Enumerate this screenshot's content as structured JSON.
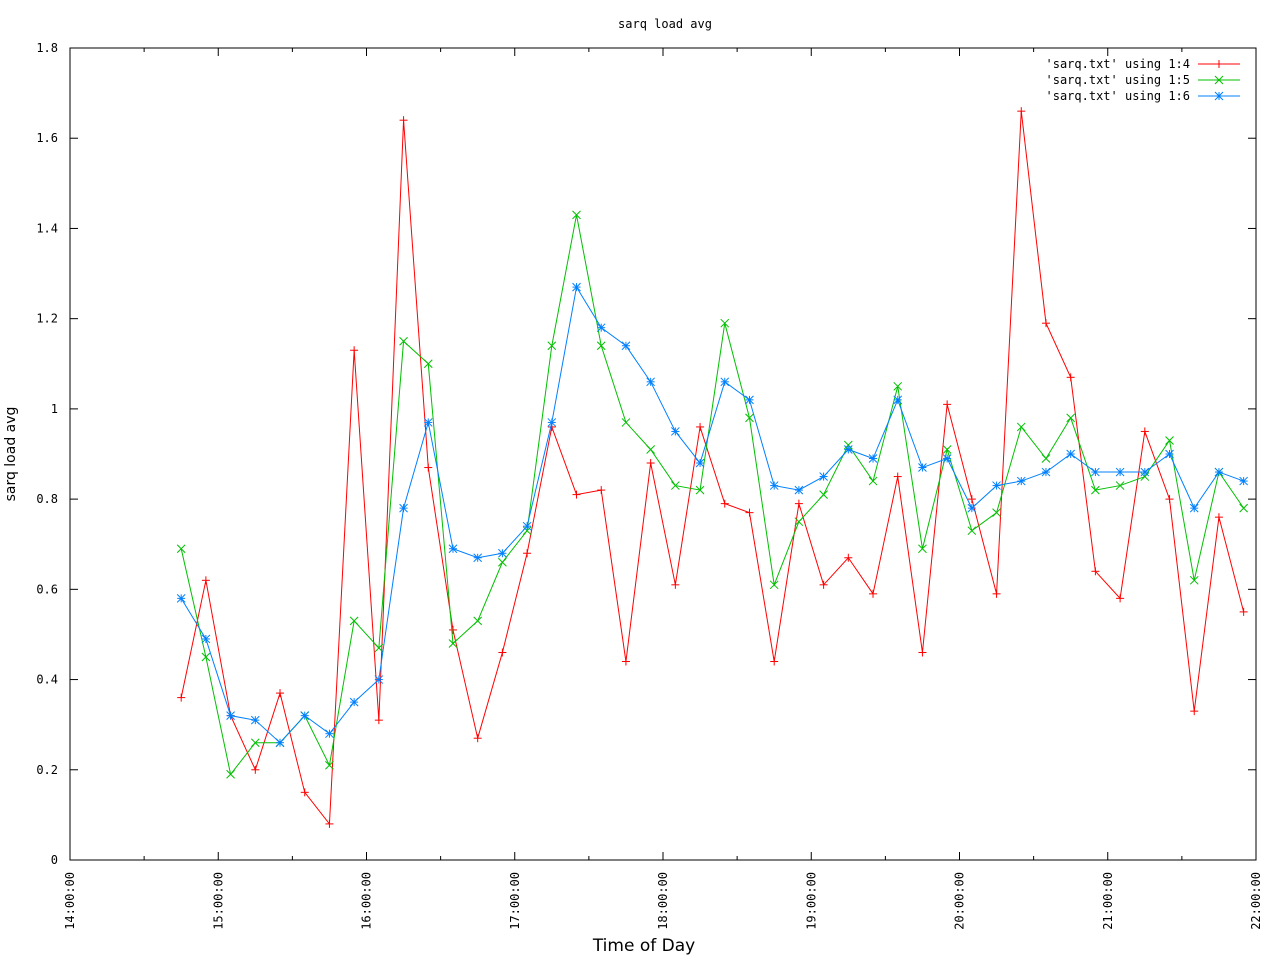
{
  "chart_data": {
    "type": "line",
    "title": "sarq load avg",
    "xlabel": "Time of Day",
    "ylabel": "sarq load avg",
    "xlim": [
      "14:00:00",
      "22:00:00"
    ],
    "ylim": [
      0,
      1.8
    ],
    "x_ticks": [
      "14:00:00",
      "15:00:00",
      "16:00:00",
      "17:00:00",
      "18:00:00",
      "19:00:00",
      "20:00:00",
      "21:00:00",
      "22:00:00"
    ],
    "y_ticks": [
      "0",
      "0.2",
      "0.4",
      "0.6",
      "0.8",
      "1",
      "1.2",
      "1.4",
      "1.6",
      "1.8"
    ],
    "grid": false,
    "legend_position": "top-right",
    "x": [
      "14:45:00",
      "14:55:00",
      "15:05:00",
      "15:15:00",
      "15:25:00",
      "15:35:00",
      "15:45:00",
      "15:55:00",
      "16:05:00",
      "16:15:00",
      "16:25:00",
      "16:35:00",
      "16:45:00",
      "16:55:00",
      "17:05:00",
      "17:15:00",
      "17:25:00",
      "17:35:00",
      "17:45:00",
      "17:55:00",
      "18:05:00",
      "18:15:00",
      "18:25:00",
      "18:35:00",
      "18:45:00",
      "18:55:00",
      "19:05:00",
      "19:15:00",
      "19:25:00",
      "19:35:00",
      "19:45:00",
      "19:55:00",
      "20:05:00",
      "20:15:00",
      "20:25:00",
      "20:35:00",
      "20:45:00",
      "20:55:00",
      "21:05:00",
      "21:15:00",
      "21:25:00",
      "21:35:00",
      "21:45:00",
      "21:55:00"
    ],
    "series": [
      {
        "name": "'sarq.txt' using 1:4",
        "color": "#ff0000",
        "marker": "plus",
        "values": [
          0.36,
          0.62,
          0.32,
          0.2,
          0.37,
          0.15,
          0.08,
          1.13,
          0.31,
          1.64,
          0.87,
          0.51,
          0.27,
          0.46,
          0.68,
          0.96,
          0.81,
          0.82,
          0.44,
          0.88,
          0.61,
          0.96,
          0.79,
          0.77,
          0.44,
          0.79,
          0.61,
          0.67,
          0.59,
          0.85,
          0.46,
          1.01,
          0.8,
          0.59,
          1.66,
          1.19,
          1.07,
          0.64,
          0.58,
          0.95,
          0.8,
          0.33,
          0.76,
          0.55
        ]
      },
      {
        "name": "'sarq.txt' using 1:5",
        "color": "#00c000",
        "marker": "cross",
        "values": [
          0.69,
          0.45,
          0.19,
          0.26,
          0.26,
          0.32,
          0.21,
          0.53,
          0.47,
          1.15,
          1.1,
          0.48,
          0.53,
          0.66,
          0.73,
          1.14,
          1.43,
          1.14,
          0.97,
          0.91,
          0.83,
          0.82,
          1.19,
          0.98,
          0.61,
          0.75,
          0.81,
          0.92,
          0.84,
          1.05,
          0.69,
          0.91,
          0.73,
          0.77,
          0.96,
          0.89,
          0.98,
          0.82,
          0.83,
          0.85,
          0.93,
          0.62,
          0.86,
          0.78
        ]
      },
      {
        "name": "'sarq.txt' using 1:6",
        "color": "#0080ff",
        "marker": "star",
        "values": [
          0.58,
          0.49,
          0.32,
          0.31,
          0.26,
          0.32,
          0.28,
          0.35,
          0.4,
          0.78,
          0.97,
          0.69,
          0.67,
          0.68,
          0.74,
          0.97,
          1.27,
          1.18,
          1.14,
          1.06,
          0.95,
          0.88,
          1.06,
          1.02,
          0.83,
          0.82,
          0.85,
          0.91,
          0.89,
          1.02,
          0.87,
          0.89,
          0.78,
          0.83,
          0.84,
          0.86,
          0.9,
          0.86,
          0.86,
          0.86,
          0.9,
          0.78,
          0.86,
          0.84
        ]
      }
    ]
  }
}
